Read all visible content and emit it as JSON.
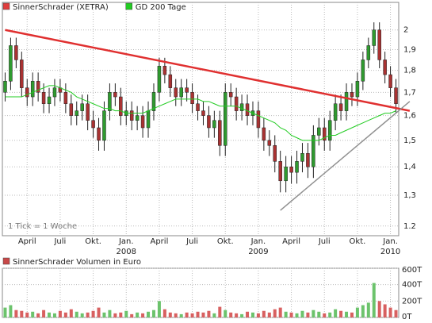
{
  "chart_data": [
    {
      "type": "candlestick",
      "yscale": "log",
      "grid": true,
      "annotation": "1 Tick = 1 Woche",
      "up_color": "#2f9a2f",
      "down_color": "#a83232",
      "categories": [
        null,
        null,
        null,
        null,
        "April",
        null,
        null,
        null,
        null,
        null,
        "Juli",
        null,
        null,
        null,
        null,
        null,
        "Okt.",
        null,
        null,
        null,
        null,
        null,
        "Jan.",
        null,
        null,
        null,
        null,
        null,
        "April",
        null,
        null,
        null,
        null,
        null,
        "Juli",
        null,
        null,
        null,
        null,
        null,
        "Okt.",
        null,
        null,
        null,
        null,
        null,
        "Jan.",
        null,
        null,
        null,
        null,
        null,
        "April",
        null,
        null,
        null,
        null,
        null,
        "Juli",
        null,
        null,
        null,
        null,
        null,
        "Okt.",
        null,
        null,
        null,
        null,
        null,
        "Jan.",
        null
      ],
      "years": [
        null,
        null,
        null,
        null,
        null,
        null,
        null,
        null,
        null,
        null,
        null,
        null,
        null,
        null,
        null,
        null,
        null,
        null,
        null,
        null,
        null,
        null,
        "2008",
        null,
        null,
        null,
        null,
        null,
        null,
        null,
        null,
        null,
        null,
        null,
        null,
        null,
        null,
        null,
        null,
        null,
        null,
        null,
        null,
        null,
        null,
        null,
        "2009",
        null,
        null,
        null,
        null,
        null,
        null,
        null,
        null,
        null,
        null,
        null,
        null,
        null,
        null,
        null,
        null,
        null,
        null,
        null,
        null,
        null,
        null,
        null,
        "2010",
        null
      ],
      "ylim": [
        1.17,
        2.14
      ],
      "yticks": [
        1.2,
        {
          "value": 1.3,
          "label": "1,3"
        },
        {
          "value": 1.4,
          "label": "1,4"
        },
        {
          "value": 1.5,
          "label": "1,5"
        },
        {
          "value": 1.6,
          "label": "1,6"
        },
        {
          "value": 1.7,
          "label": "1,7"
        },
        {
          "value": 1.8,
          "label": "1,8"
        },
        {
          "value": 1.9,
          "label": "1,9"
        },
        2
      ],
      "series": [
        {
          "name": "SinnerSchrader (XETRA)",
          "color": "#e03c3c",
          "open": [
            1.7,
            1.75,
            1.92,
            1.85,
            1.72,
            1.68,
            1.75,
            1.7,
            1.65,
            1.68,
            1.72,
            1.7,
            1.65,
            1.6,
            1.62,
            1.65,
            1.58,
            1.55,
            1.5,
            1.62,
            1.7,
            1.68,
            1.6,
            1.62,
            1.58,
            1.6,
            1.55,
            1.62,
            1.7,
            1.82,
            1.78,
            1.72,
            1.68,
            1.72,
            1.7,
            1.65,
            1.62,
            1.6,
            1.55,
            1.58,
            1.48,
            1.7,
            1.68,
            1.62,
            1.65,
            1.6,
            1.62,
            1.55,
            1.5,
            1.48,
            1.42,
            1.35,
            1.4,
            1.38,
            1.42,
            1.45,
            1.4,
            1.52,
            1.55,
            1.5,
            1.58,
            1.65,
            1.62,
            1.7,
            1.68,
            1.75,
            1.85,
            1.92,
            2.0,
            1.85,
            1.78,
            1.72
          ],
          "high": [
            1.79,
            1.96,
            1.96,
            1.89,
            1.76,
            1.79,
            1.79,
            1.74,
            1.72,
            1.76,
            1.76,
            1.74,
            1.69,
            1.66,
            1.69,
            1.69,
            1.62,
            1.59,
            1.66,
            1.74,
            1.74,
            1.72,
            1.66,
            1.66,
            1.64,
            1.64,
            1.66,
            1.74,
            1.86,
            1.86,
            1.82,
            1.76,
            1.76,
            1.76,
            1.74,
            1.69,
            1.66,
            1.64,
            1.62,
            1.62,
            1.74,
            1.74,
            1.72,
            1.69,
            1.69,
            1.66,
            1.66,
            1.59,
            1.54,
            1.52,
            1.46,
            1.44,
            1.44,
            1.46,
            1.49,
            1.49,
            1.56,
            1.59,
            1.59,
            1.62,
            1.69,
            1.69,
            1.74,
            1.74,
            1.79,
            1.89,
            1.96,
            2.04,
            2.04,
            1.89,
            1.82,
            1.76
          ],
          "low": [
            1.66,
            1.71,
            1.81,
            1.68,
            1.64,
            1.64,
            1.66,
            1.61,
            1.61,
            1.64,
            1.66,
            1.61,
            1.56,
            1.56,
            1.58,
            1.54,
            1.51,
            1.46,
            1.46,
            1.58,
            1.64,
            1.56,
            1.56,
            1.54,
            1.54,
            1.51,
            1.51,
            1.58,
            1.66,
            1.74,
            1.68,
            1.64,
            1.64,
            1.66,
            1.61,
            1.58,
            1.56,
            1.51,
            1.51,
            1.44,
            1.44,
            1.64,
            1.58,
            1.58,
            1.56,
            1.56,
            1.51,
            1.46,
            1.44,
            1.38,
            1.31,
            1.31,
            1.34,
            1.34,
            1.38,
            1.36,
            1.36,
            1.48,
            1.46,
            1.46,
            1.54,
            1.58,
            1.58,
            1.64,
            1.64,
            1.71,
            1.81,
            1.88,
            1.81,
            1.74,
            1.68,
            1.61
          ],
          "close": [
            1.75,
            1.92,
            1.85,
            1.72,
            1.68,
            1.75,
            1.7,
            1.65,
            1.68,
            1.72,
            1.7,
            1.65,
            1.6,
            1.62,
            1.65,
            1.58,
            1.55,
            1.5,
            1.62,
            1.7,
            1.68,
            1.6,
            1.62,
            1.58,
            1.6,
            1.55,
            1.62,
            1.7,
            1.82,
            1.78,
            1.72,
            1.68,
            1.72,
            1.7,
            1.65,
            1.62,
            1.6,
            1.55,
            1.58,
            1.48,
            1.7,
            1.68,
            1.62,
            1.65,
            1.6,
            1.62,
            1.55,
            1.5,
            1.48,
            1.42,
            1.35,
            1.4,
            1.38,
            1.42,
            1.45,
            1.4,
            1.52,
            1.55,
            1.5,
            1.58,
            1.65,
            1.62,
            1.7,
            1.68,
            1.75,
            1.85,
            1.92,
            2.0,
            1.85,
            1.78,
            1.72,
            1.65
          ]
        },
        {
          "name": "GD 200 Tage",
          "color": "#22cc22",
          "values": [
            1.68,
            1.68,
            1.68,
            1.68,
            1.69,
            1.7,
            1.71,
            1.72,
            1.73,
            1.73,
            1.72,
            1.71,
            1.7,
            1.68,
            1.67,
            1.66,
            1.65,
            1.64,
            1.63,
            1.63,
            1.62,
            1.62,
            1.61,
            1.61,
            1.61,
            1.61,
            1.62,
            1.63,
            1.64,
            1.65,
            1.66,
            1.67,
            1.67,
            1.67,
            1.67,
            1.67,
            1.66,
            1.66,
            1.65,
            1.64,
            1.64,
            1.64,
            1.64,
            1.63,
            1.62,
            1.61,
            1.6,
            1.59,
            1.58,
            1.57,
            1.55,
            1.54,
            1.52,
            1.51,
            1.5,
            1.5,
            1.5,
            1.5,
            1.51,
            1.52,
            1.52,
            1.53,
            1.54,
            1.55,
            1.56,
            1.57,
            1.58,
            1.59,
            1.6,
            1.61,
            1.61,
            1.62
          ]
        }
      ],
      "trendlines": [
        {
          "color": "#e03030",
          "x": [
            0,
            73.5
          ],
          "y": [
            2.0,
            1.62
          ]
        },
        {
          "color": "#909090",
          "x": [
            50,
            73.5
          ],
          "y": [
            1.25,
            1.66
          ]
        }
      ]
    },
    {
      "type": "bar",
      "up_color": "#6cc36c",
      "down_color": "#d86060",
      "ylim": [
        0,
        600000
      ],
      "yticks": [
        {
          "value": 0,
          "label": "0T"
        },
        {
          "value": 200000,
          "label": "200T"
        },
        {
          "value": 400000,
          "label": "400T"
        },
        {
          "value": 600000,
          "label": "600T"
        }
      ],
      "series": [
        {
          "name": "SinnerSchrader Volumen in Euro",
          "color": "#c84848",
          "values": [
            120000,
            150000,
            90000,
            80000,
            60000,
            70000,
            50000,
            90000,
            60000,
            50000,
            80000,
            60000,
            100000,
            70000,
            50000,
            60000,
            80000,
            120000,
            60000,
            90000,
            50000,
            60000,
            80000,
            40000,
            60000,
            50000,
            70000,
            90000,
            200000,
            100000,
            60000,
            50000,
            40000,
            60000,
            50000,
            70000,
            60000,
            80000,
            50000,
            130000,
            90000,
            60000,
            50000,
            40000,
            70000,
            60000,
            50000,
            80000,
            60000,
            100000,
            120000,
            70000,
            60000,
            50000,
            80000,
            60000,
            90000,
            70000,
            50000,
            60000,
            100000,
            80000,
            70000,
            60000,
            120000,
            150000,
            180000,
            420000,
            200000,
            160000,
            120000,
            90000
          ]
        }
      ]
    }
  ]
}
